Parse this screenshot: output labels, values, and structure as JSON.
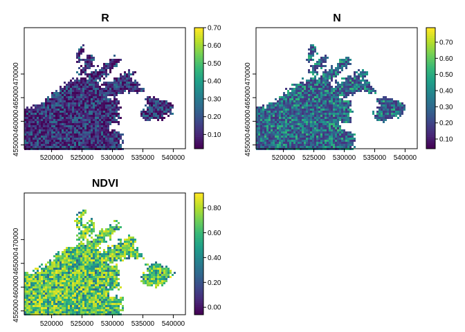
{
  "chart_data": [
    {
      "type": "heatmap",
      "title": "R",
      "xlim": [
        515500,
        542000
      ],
      "ylim": [
        454200,
        479800
      ],
      "x_ticks": [
        520000,
        525000,
        530000,
        535000,
        540000
      ],
      "y_ticks": [
        455000,
        460000,
        465000,
        470000
      ],
      "x_tick_labels": [
        "520000",
        "525000",
        "530000",
        "535000",
        "540000"
      ],
      "y_tick_labels": [
        "455000",
        "460000",
        "465000",
        "470000"
      ],
      "legend": {
        "min": 0.02,
        "max": 0.7,
        "ticks": [
          0.1,
          0.2,
          0.3,
          0.4,
          0.5,
          0.6,
          0.7
        ],
        "tick_labels": [
          "0.10",
          "0.20",
          "0.30",
          "0.40",
          "0.50",
          "0.60",
          "0.70"
        ],
        "placement": "right",
        "colormap": "viridis"
      },
      "value_range": [
        0.02,
        0.3
      ],
      "mean_value": 0.09
    },
    {
      "type": "heatmap",
      "title": "N",
      "xlim": [
        515500,
        542000
      ],
      "ylim": [
        454200,
        479800
      ],
      "x_ticks": [
        520000,
        525000,
        530000,
        535000,
        540000
      ],
      "y_ticks": [
        455000,
        460000,
        465000,
        470000
      ],
      "x_tick_labels": [
        "520000",
        "525000",
        "530000",
        "535000",
        "540000"
      ],
      "y_tick_labels": [
        "455000",
        "460000",
        "465000",
        "470000"
      ],
      "legend": {
        "min": 0.04,
        "max": 0.79,
        "ticks": [
          0.1,
          0.2,
          0.3,
          0.4,
          0.5,
          0.6,
          0.7
        ],
        "tick_labels": [
          "0.10",
          "0.20",
          "0.30",
          "0.40",
          "0.50",
          "0.60",
          "0.70"
        ],
        "placement": "right",
        "colormap": "viridis"
      },
      "value_range": [
        0.15,
        0.55
      ],
      "mean_value": 0.33
    },
    {
      "type": "heatmap",
      "title": "NDVI",
      "xlim": [
        515500,
        542000
      ],
      "ylim": [
        454200,
        479800
      ],
      "x_ticks": [
        520000,
        525000,
        530000,
        535000,
        540000
      ],
      "y_ticks": [
        455000,
        460000,
        465000,
        470000
      ],
      "x_tick_labels": [
        "520000",
        "525000",
        "530000",
        "535000",
        "540000"
      ],
      "y_tick_labels": [
        "455000",
        "460000",
        "465000",
        "470000"
      ],
      "legend": {
        "min": -0.06,
        "max": 0.92,
        "ticks": [
          0.0,
          0.2,
          0.4,
          0.6,
          0.8
        ],
        "tick_labels": [
          "0.00",
          "0.20",
          "0.40",
          "0.60",
          "0.80"
        ],
        "placement": "right",
        "colormap": "viridis"
      },
      "value_range": [
        0.2,
        0.9
      ],
      "mean_value": 0.62
    }
  ],
  "colors": {
    "viridis": [
      "#440154",
      "#482878",
      "#3e4989",
      "#31688e",
      "#26828e",
      "#1f9e89",
      "#35b779",
      "#6ece58",
      "#b5de2b",
      "#fde725"
    ]
  }
}
